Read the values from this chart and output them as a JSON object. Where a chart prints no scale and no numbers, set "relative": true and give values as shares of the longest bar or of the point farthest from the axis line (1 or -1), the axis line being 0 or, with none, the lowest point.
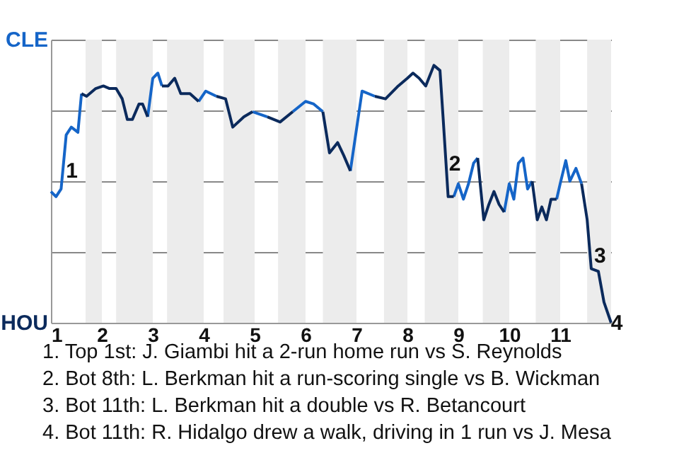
{
  "chart_data": {
    "type": "line",
    "relative": true,
    "xlim": [
      1,
      12
    ],
    "xticks": [
      1,
      2,
      3,
      4,
      5,
      6,
      7,
      8,
      9,
      10,
      11
    ],
    "grid": "y",
    "series": [
      {
        "name": "CLE",
        "color": "#1565c8",
        "x": [
          1.0,
          1.1,
          1.2,
          1.3,
          1.4,
          1.53,
          1.6,
          2.4,
          2.9,
          3.0,
          3.1,
          3.18,
          3.5,
          3.9,
          4.04,
          4.25,
          4.6,
          4.96,
          5.25,
          5.4,
          5.75,
          6.0,
          6.16,
          6.34,
          6.6,
          6.88,
          7.11,
          7.36,
          7.6,
          8.91,
          9.0,
          9.1,
          9.2,
          9.3,
          9.38,
          9.7,
          9.9,
          10.0,
          10.09,
          10.18,
          10.27,
          10.36,
          10.45,
          10.7,
          10.93,
          11.0,
          11.11,
          11.19,
          11.31,
          11.42
        ],
        "values": [
          0.51,
          0.49,
          0.52,
          0.73,
          0.76,
          0.74,
          0.89,
          null,
          0.8,
          0.95,
          0.97,
          0.92,
          null,
          0.86,
          0.9,
          0.88,
          null,
          0.82,
          0.8,
          null,
          0.82,
          0.86,
          0.85,
          0.82,
          null,
          0.59,
          0.9,
          0.88,
          null,
          0.49,
          0.54,
          0.48,
          0.54,
          0.62,
          0.64,
          null,
          0.43,
          0.54,
          0.48,
          0.62,
          0.64,
          0.52,
          0.55,
          null,
          0.48,
          0.54,
          0.63,
          0.55,
          0.6,
          0.54
        ]
      },
      {
        "name": "HOU",
        "color": "#0b2a5c",
        "x": [
          1.6,
          1.7,
          1.88,
          2.03,
          2.15,
          2.28,
          2.4,
          2.5,
          2.6,
          2.73,
          2.8,
          2.9,
          3.05,
          3.18,
          3.3,
          3.43,
          3.55,
          3.73,
          3.9,
          4.1,
          4.25,
          4.43,
          4.57,
          4.79,
          4.96,
          5.1,
          5.25,
          5.5,
          5.75,
          6.1,
          6.34,
          6.47,
          6.63,
          6.75,
          6.88,
          7.0,
          7.36,
          7.57,
          7.82,
          8.0,
          8.11,
          8.23,
          8.36,
          8.52,
          8.64,
          8.7,
          8.8,
          8.91,
          9.2,
          9.38,
          9.5,
          9.6,
          9.7,
          9.8,
          9.9,
          10.2,
          10.45,
          10.55,
          10.64,
          10.73,
          10.82,
          10.93,
          11.2,
          11.42,
          11.53,
          11.61,
          11.75,
          11.86,
          12.0
        ],
        "values": [
          0.89,
          0.88,
          0.91,
          0.92,
          0.91,
          0.91,
          0.87,
          0.79,
          0.79,
          0.85,
          0.85,
          0.8,
          null,
          0.92,
          0.92,
          0.95,
          0.89,
          0.89,
          0.86,
          null,
          0.88,
          0.87,
          0.76,
          0.8,
          0.82,
          null,
          0.8,
          0.78,
          0.82,
          null,
          0.82,
          0.66,
          0.7,
          0.65,
          0.59,
          null,
          0.88,
          0.87,
          0.92,
          0.95,
          0.97,
          0.95,
          0.92,
          1,
          0.98,
          0.8,
          0.49,
          0.49,
          null,
          0.64,
          0.4,
          0.46,
          0.51,
          0.46,
          0.43,
          null,
          0.55,
          0.4,
          0.45,
          0.4,
          0.48,
          0.48,
          null,
          0.54,
          0.4,
          0.21,
          0.2,
          0.08,
          0
        ]
      }
    ],
    "bands": [
      {
        "axis": "x",
        "from": 1.68,
        "to": 2,
        "color": "#ececec"
      },
      {
        "axis": "x",
        "from": 2.28,
        "to": 3,
        "color": "#ececec"
      },
      {
        "axis": "x",
        "from": 3.28,
        "to": 4,
        "color": "#ececec"
      },
      {
        "axis": "x",
        "from": 4.39,
        "to": 5,
        "color": "#ececec"
      },
      {
        "axis": "x",
        "from": 5.46,
        "to": 6,
        "color": "#ececec"
      },
      {
        "axis": "x",
        "from": 6.34,
        "to": 7,
        "color": "#ececec"
      },
      {
        "axis": "x",
        "from": 7.54,
        "to": 8,
        "color": "#ececec"
      },
      {
        "axis": "x",
        "from": 8.34,
        "to": 9,
        "color": "#ececec"
      },
      {
        "axis": "x",
        "from": 9.48,
        "to": 10,
        "color": "#ececec"
      },
      {
        "axis": "x",
        "from": 10.52,
        "to": 11,
        "color": "#ececec"
      },
      {
        "axis": "x",
        "from": 11.53,
        "to": 12,
        "color": "#ececec"
      }
    ],
    "annotations": [
      {
        "text": "1",
        "x": 1.3,
        "y": 0.59
      },
      {
        "text": "2",
        "x": 8.82,
        "y": 0.62
      },
      {
        "text": "3",
        "x": 11.67,
        "y": 0.26
      },
      {
        "text": "4",
        "x": 12,
        "y": 0
      },
      "1. Top 1st: J. Giambi hit a 2-run home run vs S. Reynolds",
      "2. Bot 8th: L. Berkman hit a run-scoring single vs B. Wickman",
      "3. Bot 11th: L. Berkman hit a double vs R. Betancourt",
      "4. Bot 11th: R. Hidalgo drew a walk, driving in 1 run vs J. Mesa"
    ]
  }
}
